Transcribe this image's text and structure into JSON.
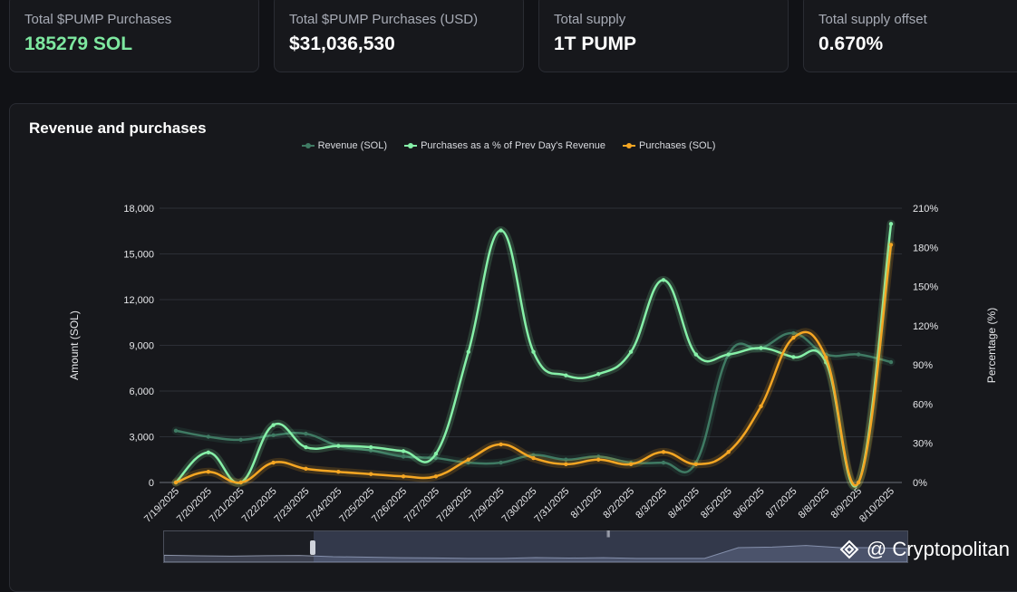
{
  "stats": [
    {
      "label": "Total $PUMP Purchases",
      "value": "185279 SOL"
    },
    {
      "label": "Total $PUMP Purchases (USD)",
      "value": "$31,036,530"
    },
    {
      "label": "Total supply",
      "value": "1T PUMP"
    },
    {
      "label": "Total supply offset",
      "value": "0.670%"
    }
  ],
  "chart_title": "Revenue and purchases",
  "watermark": "@ Cryptopolitan",
  "chart_data": {
    "type": "line",
    "title": "Revenue and purchases",
    "categories": [
      "7/19/2025",
      "7/20/2025",
      "7/21/2025",
      "7/22/2025",
      "7/23/2025",
      "7/24/2025",
      "7/25/2025",
      "7/26/2025",
      "7/27/2025",
      "7/28/2025",
      "7/29/2025",
      "7/30/2025",
      "7/31/2025",
      "8/1/2025",
      "8/2/2025",
      "8/3/2025",
      "8/4/2025",
      "8/5/2025",
      "8/6/2025",
      "8/7/2025",
      "8/8/2025",
      "8/9/2025",
      "8/10/2025"
    ],
    "y_left": {
      "label": "Amount (SOL)",
      "min": 0,
      "max": 18000,
      "ticks": [
        "0",
        "3,000",
        "6,000",
        "9,000",
        "12,000",
        "15,000",
        "18,000"
      ]
    },
    "y_right": {
      "label": "Percentage (%)",
      "min": 0,
      "max": 210,
      "ticks": [
        "0%",
        "30%",
        "60%",
        "90%",
        "120%",
        "150%",
        "180%",
        "210%"
      ]
    },
    "legend_position": "top-center",
    "grid": true,
    "series": [
      {
        "name": "Revenue (SOL)",
        "axis": "left",
        "color": "#3f7a63",
        "values": [
          3400,
          3000,
          2800,
          3100,
          3200,
          2400,
          2100,
          1700,
          1600,
          1300,
          1300,
          1800,
          1500,
          1700,
          1300,
          1300,
          1300,
          8400,
          8800,
          9800,
          8400,
          8400,
          7900
        ]
      },
      {
        "name": "Purchases as a % of Prev Day's Revenue",
        "axis": "right",
        "color": "#86f0a8",
        "values": [
          0,
          23,
          0,
          44,
          27,
          28,
          27,
          24,
          22,
          100,
          193,
          100,
          82,
          83,
          100,
          155,
          98,
          98,
          103,
          96,
          92,
          0,
          198
        ]
      },
      {
        "name": "Purchases (SOL)",
        "axis": "left",
        "color": "#f5a623",
        "values": [
          0,
          700,
          0,
          1300,
          900,
          700,
          550,
          400,
          400,
          1500,
          2500,
          1600,
          1200,
          1500,
          1200,
          2000,
          1200,
          2000,
          5000,
          9500,
          8200,
          0,
          15600
        ]
      }
    ]
  }
}
